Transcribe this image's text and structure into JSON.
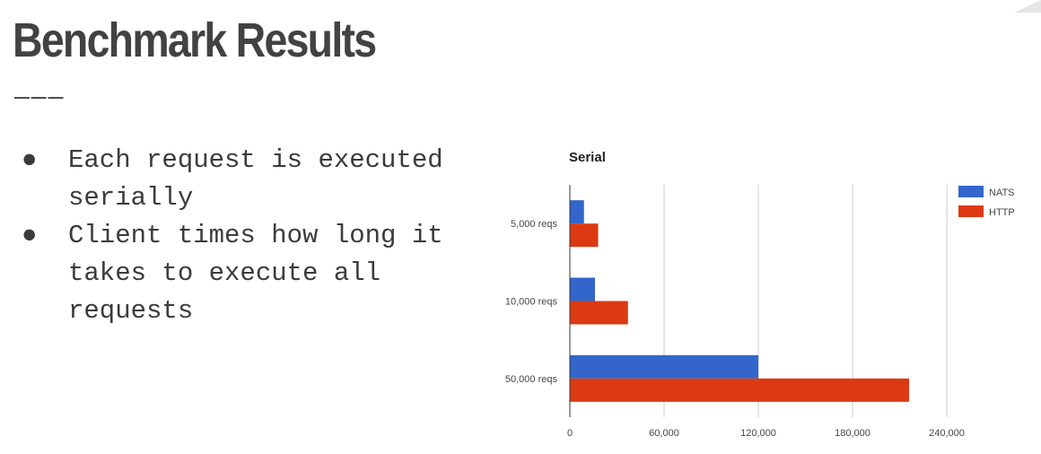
{
  "slide": {
    "title": "Benchmark Results",
    "rule": "———",
    "bullets": [
      {
        "dot": "●",
        "text": "Each request is executed serially"
      },
      {
        "dot": "●",
        "text": "Client times how long it takes to execute all requests"
      }
    ]
  },
  "chart_data": {
    "type": "bar",
    "orientation": "horizontal",
    "title": "Serial",
    "categories": [
      "5,000 reqs",
      "10,000 reqs",
      "50,000 reqs"
    ],
    "series": [
      {
        "name": "NATS",
        "color": "#3366cc",
        "values": [
          9000,
          16000,
          120000
        ]
      },
      {
        "name": "HTTP",
        "color": "#dc3912",
        "values": [
          18000,
          37000,
          216000
        ]
      }
    ],
    "xlim": [
      0,
      240000
    ],
    "xticks": [
      0,
      60000,
      120000,
      180000,
      240000
    ],
    "xtick_labels": [
      "0",
      "60,000",
      "120,000",
      "180,000",
      "240,000"
    ],
    "grid": true,
    "legend": "top-right"
  }
}
